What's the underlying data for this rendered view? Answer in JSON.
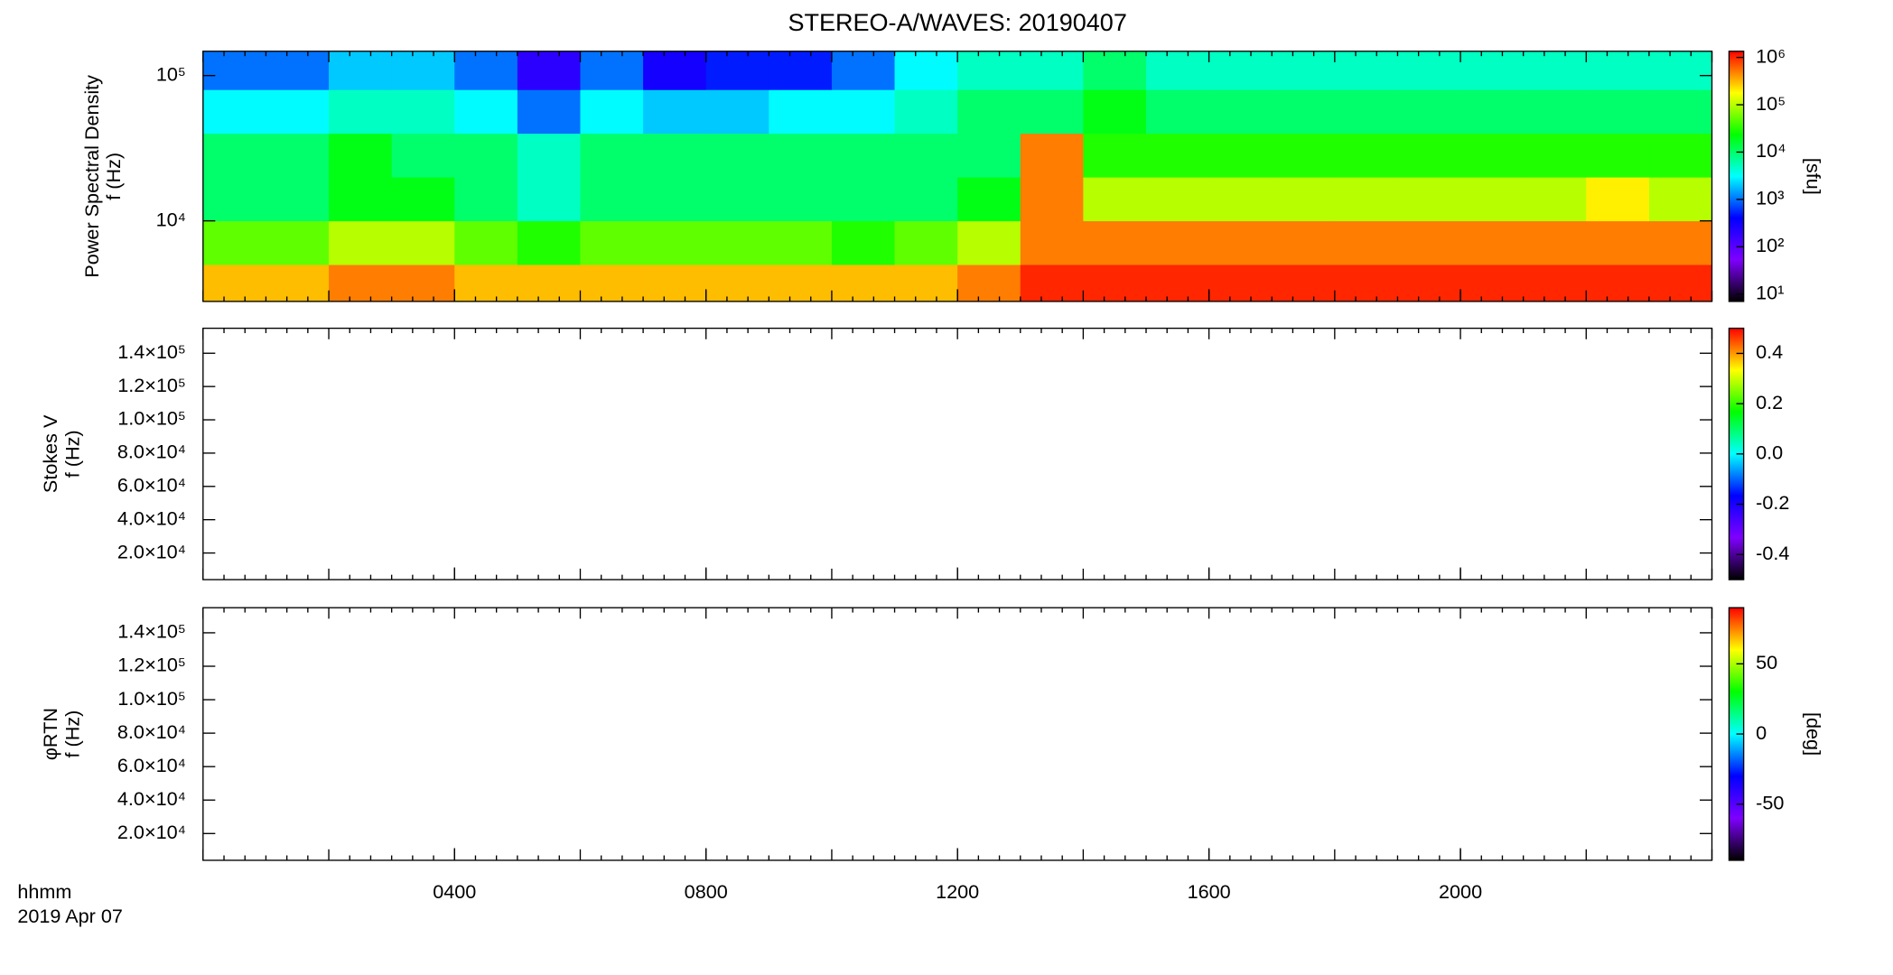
{
  "title": "STEREO-A/WAVES: 20190407",
  "x_axis": {
    "xlim": [
      0,
      24
    ],
    "xticks": [
      {
        "value": 4,
        "label": "0400"
      },
      {
        "value": 8,
        "label": "0800"
      },
      {
        "value": 12,
        "label": "1200"
      },
      {
        "value": 16,
        "label": "1600"
      },
      {
        "value": 20,
        "label": "2000"
      }
    ],
    "xlabel": [
      "hhmm",
      "2019 Apr 07"
    ]
  },
  "chart_data": [
    {
      "type": "heatmap",
      "ylabel": [
        "Power Spectral Density",
        "f (Hz)"
      ],
      "log_y": true,
      "ylim": [
        2790,
        147000
      ],
      "yticks": [
        {
          "value": 10000,
          "label": "10⁴"
        },
        {
          "value": 100000,
          "label": "10⁵"
        }
      ],
      "x": [
        0,
        1,
        2,
        3,
        4,
        5,
        6,
        7,
        8,
        9,
        10,
        11,
        12,
        13,
        14,
        15,
        16,
        17,
        18,
        19,
        20,
        21,
        22,
        23,
        24
      ],
      "y": [
        2790,
        5000,
        10000,
        20000,
        40000,
        80000,
        147000
      ],
      "z": [
        [
          300000,
          300000,
          500000,
          500000,
          300000,
          300000,
          300000,
          300000,
          300000,
          300000,
          300000,
          300000,
          500000,
          1000000,
          1000000,
          1000000,
          1000000,
          1000000,
          1000000,
          1000000,
          1000000,
          1000000,
          1000000,
          1000000
        ],
        [
          50000,
          50000,
          100000,
          100000,
          50000,
          30000,
          50000,
          50000,
          50000,
          50000,
          30000,
          50000,
          100000,
          500000,
          500000,
          500000,
          500000,
          500000,
          500000,
          500000,
          500000,
          500000,
          500000,
          500000
        ],
        [
          10000,
          10000,
          20000,
          20000,
          10000,
          5000,
          10000,
          10000,
          10000,
          10000,
          10000,
          10000,
          20000,
          500000,
          100000,
          100000,
          100000,
          100000,
          100000,
          100000,
          100000,
          100000,
          200000,
          100000
        ],
        [
          10000,
          10000,
          20000,
          10000,
          10000,
          5000,
          10000,
          10000,
          10000,
          10000,
          10000,
          10000,
          10000,
          500000,
          30000,
          30000,
          30000,
          30000,
          30000,
          30000,
          30000,
          30000,
          30000,
          30000
        ],
        [
          3000,
          3000,
          5000,
          5000,
          3000,
          1000,
          3000,
          2000,
          2000,
          3000,
          3000,
          5000,
          10000,
          10000,
          20000,
          10000,
          10000,
          10000,
          10000,
          10000,
          10000,
          10000,
          10000,
          10000
        ],
        [
          1000,
          1000,
          2000,
          2000,
          1000,
          200,
          1000,
          300,
          500,
          500,
          1000,
          3000,
          5000,
          5000,
          10000,
          5000,
          5000,
          5000,
          5000,
          5000,
          5000,
          5000,
          5000,
          5000
        ]
      ],
      "colorbar_label": "[sfu]",
      "log_c": true,
      "clim": [
        7,
        1350000
      ],
      "cticks": [
        {
          "value": 10,
          "label": "10¹"
        },
        {
          "value": 100,
          "label": "10²"
        },
        {
          "value": 1000,
          "label": "10³"
        },
        {
          "value": 10000,
          "label": "10⁴"
        },
        {
          "value": 100000,
          "label": "10⁵"
        },
        {
          "value": 1000000,
          "label": "10⁶"
        }
      ],
      "colormap": [
        "#000000",
        "#7f00ff",
        "#0000ff",
        "#00ffff",
        "#00ff00",
        "#ffff00",
        "#ff0000"
      ]
    },
    {
      "type": "heatmap",
      "ylabel": [
        "Stokes V",
        "f (Hz)"
      ],
      "log_y": false,
      "ylim": [
        4000,
        155000
      ],
      "yticks": [
        {
          "value": 20000,
          "label": "2.0×10⁴"
        },
        {
          "value": 40000,
          "label": "4.0×10⁴"
        },
        {
          "value": 60000,
          "label": "6.0×10⁴"
        },
        {
          "value": 80000,
          "label": "8.0×10⁴"
        },
        {
          "value": 100000,
          "label": "1.0×10⁵"
        },
        {
          "value": 120000,
          "label": "1.2×10⁵"
        },
        {
          "value": 140000,
          "label": "1.4×10⁵"
        }
      ],
      "log_c": false,
      "clim": [
        -0.5,
        0.5
      ],
      "cticks": [
        {
          "value": -0.4,
          "label": "-0.4"
        },
        {
          "value": -0.2,
          "label": "-0.2"
        },
        {
          "value": 0,
          "label": "0.0"
        },
        {
          "value": 0.2,
          "label": "0.2"
        },
        {
          "value": 0.4,
          "label": "0.4"
        }
      ],
      "colormap": [
        "#000000",
        "#7f00ff",
        "#0000ff",
        "#00ffff",
        "#00ff00",
        "#ffff00",
        "#ff0000"
      ]
    },
    {
      "type": "heatmap",
      "ylabel": [
        "φRTN",
        "f (Hz)"
      ],
      "log_y": false,
      "ylim": [
        4000,
        155000
      ],
      "yticks": [
        {
          "value": 20000,
          "label": "2.0×10⁴"
        },
        {
          "value": 40000,
          "label": "4.0×10⁴"
        },
        {
          "value": 60000,
          "label": "6.0×10⁴"
        },
        {
          "value": 80000,
          "label": "8.0×10⁴"
        },
        {
          "value": 100000,
          "label": "1.0×10⁵"
        },
        {
          "value": 120000,
          "label": "1.2×10⁵"
        },
        {
          "value": 140000,
          "label": "1.4×10⁵"
        }
      ],
      "colorbar_label": "[deg]",
      "log_c": false,
      "clim": [
        -90,
        90
      ],
      "cticks": [
        -50,
        0,
        50
      ],
      "colormap": [
        "#000000",
        "#7f00ff",
        "#0000ff",
        "#00ffff",
        "#00ff00",
        "#ffff00",
        "#ff0000"
      ]
    }
  ]
}
